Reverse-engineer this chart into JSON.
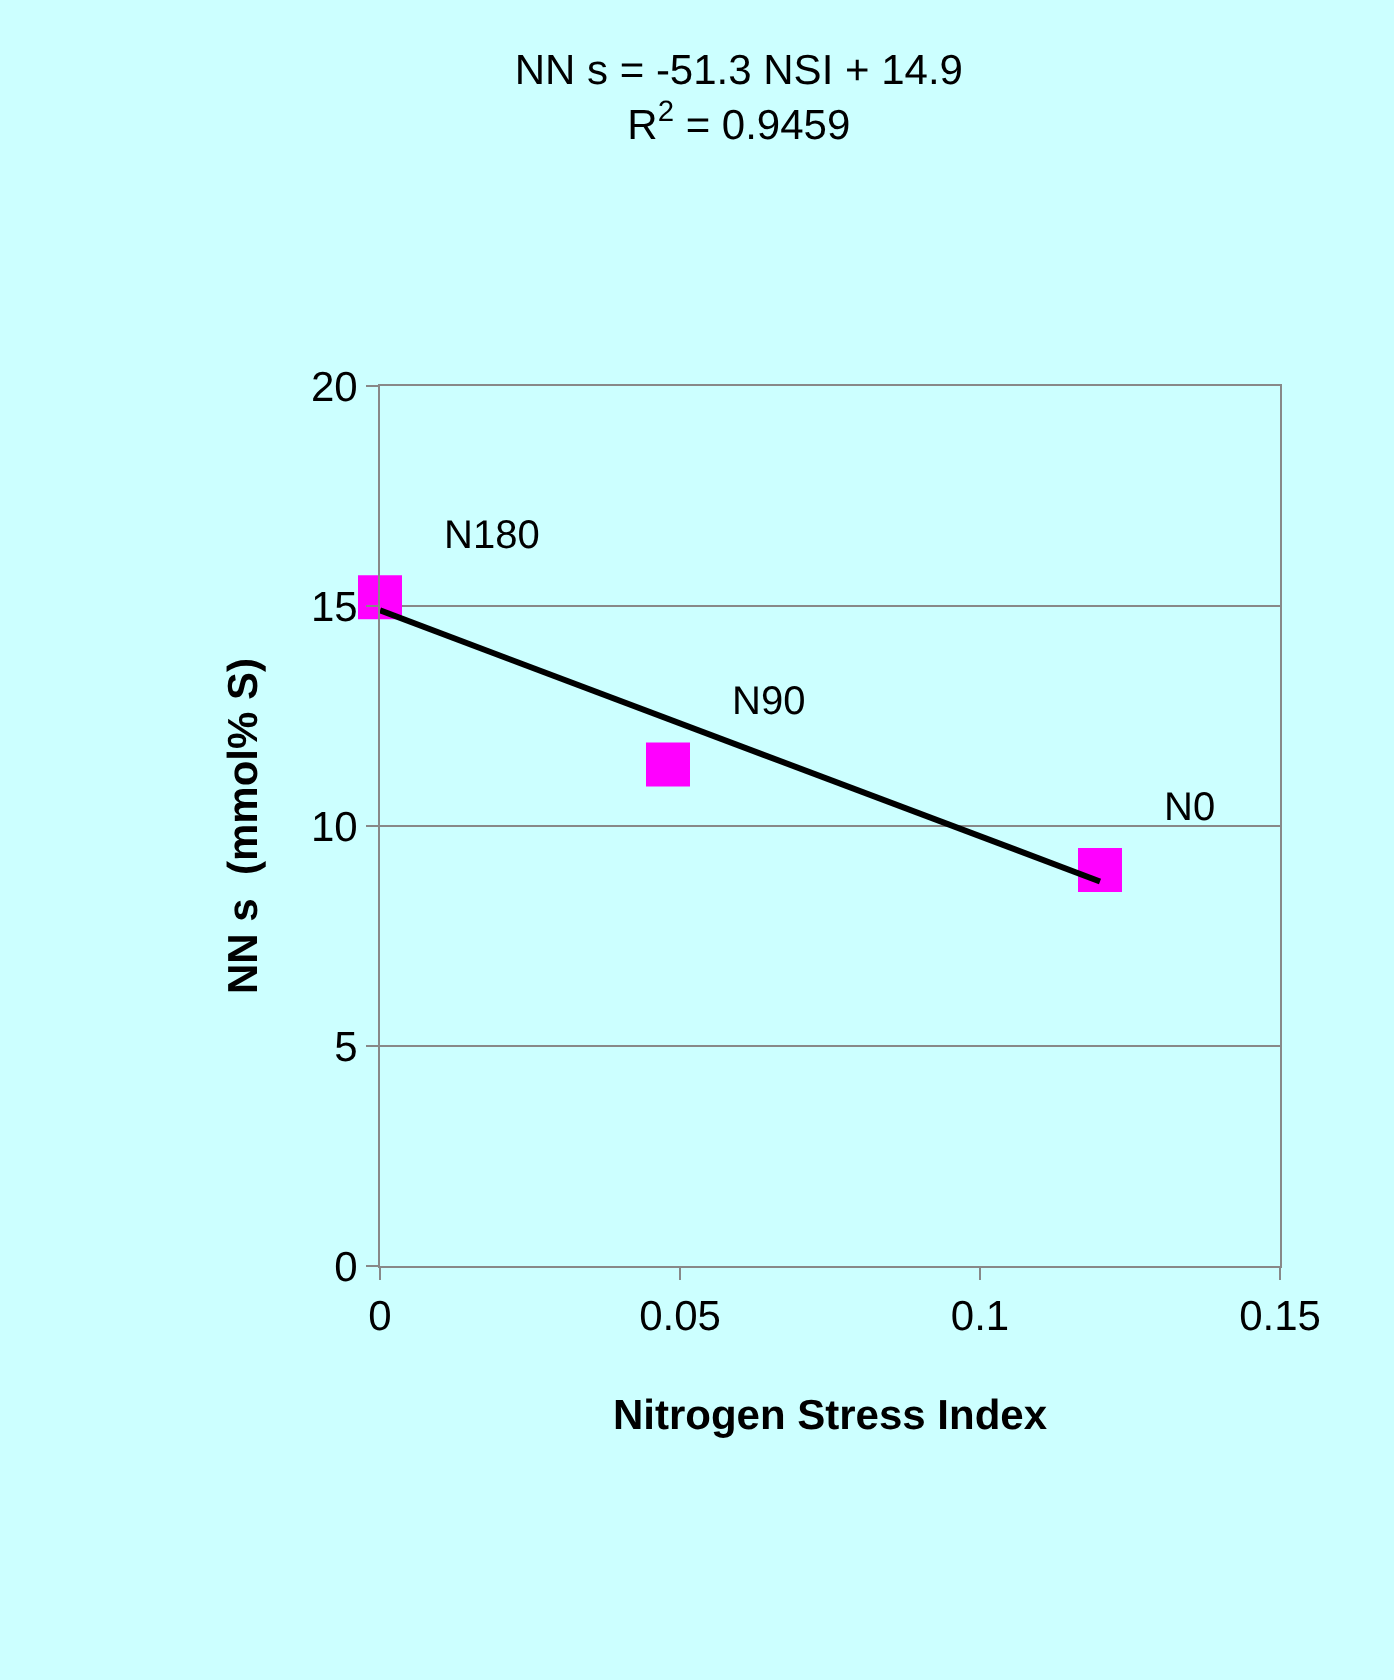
{
  "chart_data": {
    "type": "scatter",
    "title": "NN s = -51.3 NSI + 14.9",
    "subtitle": "R$^{2}$ = 0.9459",
    "xlabel": "Nitrogen Stress Index",
    "ylabel": "NN s  (mmol% S)",
    "series": [
      {
        "color": "#ff00ff",
        "marker": "square",
        "x": [
          0,
          0.048,
          0.12
        ],
        "values": [
          15.2,
          11.4,
          9.0
        ]
      },
      {
        "type": "line",
        "color": "#000000",
        "line_style": "solid",
        "marker": "none",
        "x": [
          0,
          0.12
        ],
        "values": [
          14.9,
          8.74
        ]
      }
    ],
    "annotations": [
      {
        "text": "N180",
        "x": 0,
        "y": 15.2
      },
      {
        "text": "N90",
        "x": 0.048,
        "y": 11.4
      },
      {
        "text": "N0",
        "x": 0.12,
        "y": 9.0
      }
    ],
    "xlim": [
      0,
      0.15
    ],
    "xticks": [
      0,
      0.05,
      0.1,
      0.15
    ],
    "ylim": [
      0,
      20
    ],
    "yticks": [
      0,
      5,
      10,
      15,
      20
    ],
    "grid": "y"
  }
}
